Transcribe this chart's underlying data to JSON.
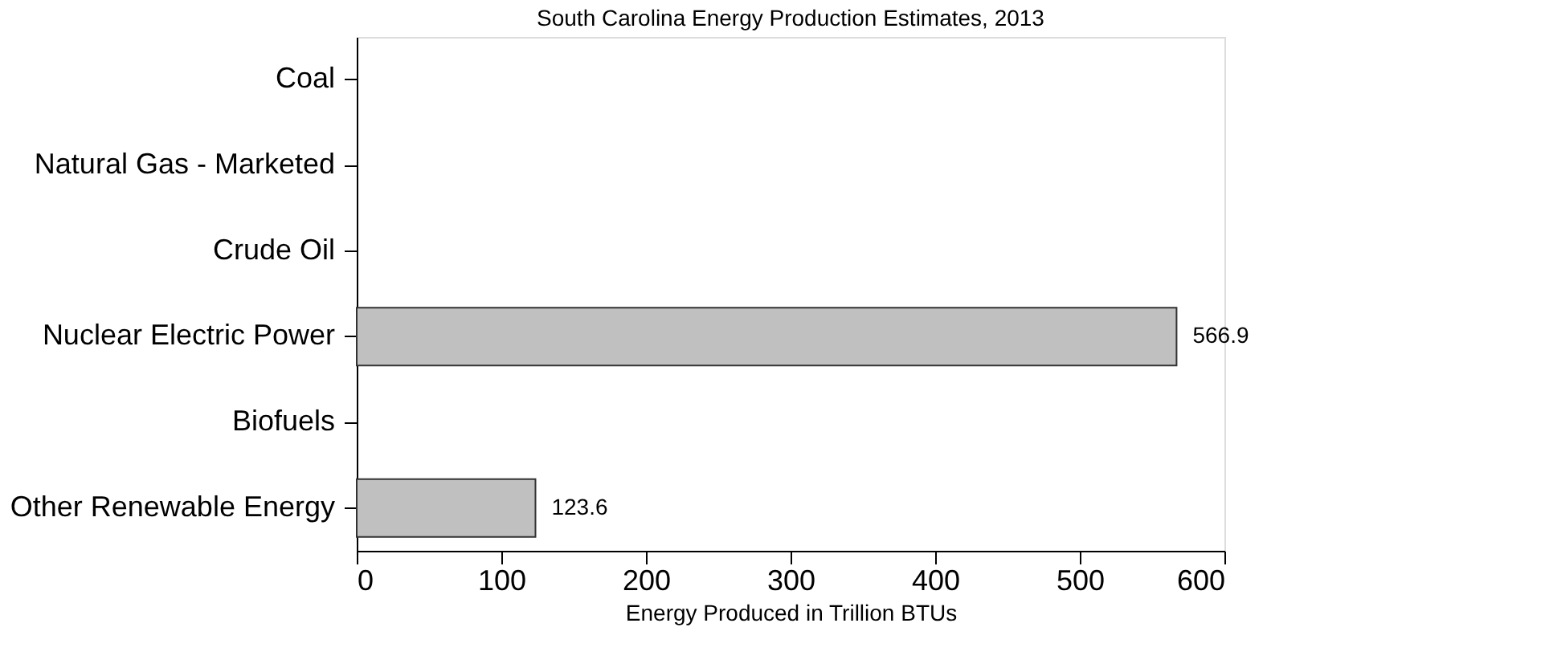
{
  "chart_data": {
    "type": "bar",
    "orientation": "horizontal",
    "title": "South Carolina Energy Production Estimates, 2013",
    "xlabel": "Energy Produced in Trillion BTUs",
    "categories": [
      "Coal",
      "Natural Gas - Marketed",
      "Crude Oil",
      "Nuclear Electric Power",
      "Biofuels",
      "Other Renewable Energy"
    ],
    "values": [
      0,
      0,
      0,
      566.9,
      0,
      123.6
    ],
    "value_labels": [
      null,
      null,
      null,
      "566.9",
      null,
      "123.6"
    ],
    "color": "#c0c0c0",
    "xlim": [
      0,
      600
    ],
    "xticks": [
      0,
      100,
      200,
      300,
      400,
      500,
      600
    ],
    "grid": false
  }
}
